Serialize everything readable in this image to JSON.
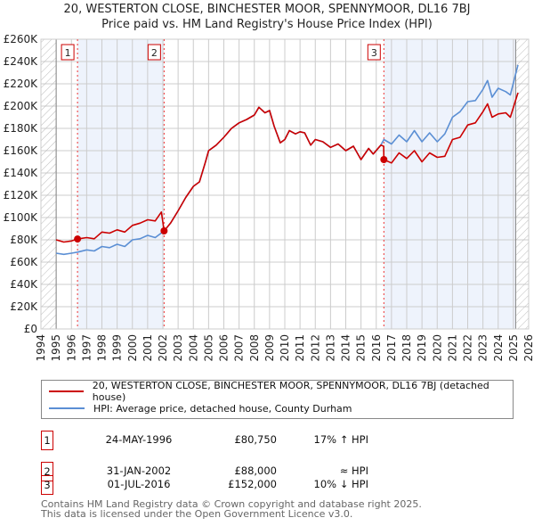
{
  "chart_data": {
    "type": "line",
    "title": "20, WESTERTON CLOSE, BINCHESTER MOOR, SPENNYMOOR, DL16 7BJ",
    "subtitle": "Price paid vs. HM Land Registry's House Price Index (HPI)",
    "xlim": [
      1994,
      2026
    ],
    "ylim": [
      0,
      260000
    ],
    "x_ticks": [
      "1994",
      "1995",
      "1996",
      "1997",
      "1998",
      "1999",
      "2000",
      "2001",
      "2002",
      "2003",
      "2004",
      "2005",
      "2006",
      "2007",
      "2008",
      "2009",
      "2010",
      "2011",
      "2012",
      "2013",
      "2014",
      "2015",
      "2016",
      "2017",
      "2018",
      "2019",
      "2020",
      "2021",
      "2022",
      "2023",
      "2024",
      "2025",
      "2026"
    ],
    "y_ticks": [
      {
        "v": 0,
        "label": "£0"
      },
      {
        "v": 20000,
        "label": "£20K"
      },
      {
        "v": 40000,
        "label": "£40K"
      },
      {
        "v": 60000,
        "label": "£60K"
      },
      {
        "v": 80000,
        "label": "£80K"
      },
      {
        "v": 100000,
        "label": "£100K"
      },
      {
        "v": 120000,
        "label": "£120K"
      },
      {
        "v": 140000,
        "label": "£140K"
      },
      {
        "v": 160000,
        "label": "£160K"
      },
      {
        "v": 180000,
        "label": "£180K"
      },
      {
        "v": 200000,
        "label": "£200K"
      },
      {
        "v": 220000,
        "label": "£220K"
      },
      {
        "v": 240000,
        "label": "£240K"
      },
      {
        "v": 260000,
        "label": "£260K"
      }
    ],
    "grid": true,
    "series": [
      {
        "name": "20, WESTERTON CLOSE, BINCHESTER MOOR, SPENNYMOOR, DL16 7BJ (detached house)",
        "color": "#cc0000",
        "x": [
          1995,
          1995.5,
          1996,
          1996.4,
          1997,
          1997.5,
          1998,
          1998.5,
          1999,
          1999.5,
          2000,
          2000.5,
          2001,
          2001.5,
          2001.9,
          2002.08,
          2002.5,
          2003,
          2003.5,
          2004,
          2004.4,
          2004.8,
          2005,
          2005.5,
          2006,
          2006.5,
          2007,
          2007.5,
          2008,
          2008.3,
          2008.7,
          2009,
          2009.3,
          2009.7,
          2010,
          2010.3,
          2010.7,
          2011,
          2011.3,
          2011.7,
          2012,
          2012.5,
          2013,
          2013.5,
          2014,
          2014.5,
          2015,
          2015.5,
          2015.8,
          2016.3,
          2016.49,
          2016.5,
          2017,
          2017.5,
          2018,
          2018.5,
          2019,
          2019.5,
          2020,
          2020.5,
          2021,
          2021.5,
          2022,
          2022.5,
          2023,
          2023.3,
          2023.6,
          2024,
          2024.5,
          2024.8,
          2025.3
        ],
        "y": [
          80000,
          78000,
          79000,
          80750,
          82000,
          81000,
          87000,
          86000,
          89000,
          87000,
          93000,
          95000,
          98000,
          97000,
          105000,
          88000,
          95000,
          106000,
          118000,
          128000,
          132000,
          150000,
          160000,
          165000,
          172000,
          180000,
          185000,
          188000,
          192000,
          199000,
          194000,
          196000,
          182000,
          167000,
          170000,
          178000,
          175000,
          177000,
          176000,
          165000,
          170000,
          168000,
          163000,
          166000,
          160000,
          164000,
          152000,
          162000,
          157000,
          165000,
          164000,
          152000,
          149000,
          158000,
          153000,
          160000,
          150000,
          158000,
          154000,
          155000,
          170000,
          172000,
          183000,
          185000,
          195000,
          202000,
          190000,
          193000,
          194000,
          190000,
          212000
        ]
      },
      {
        "name": "HPI: Average price, detached house, County Durham",
        "color": "#5b8fd4",
        "x": [
          1995,
          1995.5,
          1996,
          1996.4,
          1997,
          1997.5,
          1998,
          1998.5,
          1999,
          1999.5,
          2000,
          2000.5,
          2001,
          2001.5,
          2002.08,
          2002.5,
          2003,
          2003.5,
          2004,
          2004.4,
          2004.8,
          2005,
          2005.5,
          2006,
          2006.5,
          2007,
          2007.5,
          2008,
          2008.3,
          2008.7,
          2009,
          2009.3,
          2009.7,
          2010,
          2010.3,
          2010.7,
          2011,
          2011.3,
          2011.7,
          2012,
          2012.5,
          2013,
          2013.5,
          2014,
          2014.5,
          2015,
          2015.5,
          2015.8,
          2016.3,
          2016.5,
          2017,
          2017.5,
          2018,
          2018.5,
          2019,
          2019.5,
          2020,
          2020.5,
          2021,
          2021.5,
          2022,
          2022.5,
          2023,
          2023.3,
          2023.6,
          2024,
          2024.5,
          2024.8,
          2025.3
        ],
        "y": [
          68000,
          67000,
          68000,
          69000,
          71000,
          70000,
          74000,
          73000,
          76000,
          74000,
          80000,
          81000,
          84000,
          82000,
          88000,
          95000,
          106000,
          118000,
          128000,
          132000,
          150000,
          160000,
          165000,
          172000,
          180000,
          185000,
          188000,
          192000,
          199000,
          194000,
          196000,
          182000,
          167000,
          170000,
          178000,
          175000,
          177000,
          176000,
          165000,
          170000,
          168000,
          163000,
          166000,
          160000,
          164000,
          152000,
          162000,
          157000,
          165000,
          170000,
          166000,
          174000,
          168000,
          178000,
          168000,
          176000,
          168000,
          175000,
          190000,
          195000,
          204000,
          205000,
          215000,
          223000,
          208000,
          216000,
          213000,
          210000,
          237000
        ]
      }
    ],
    "sales": [
      {
        "id": "1",
        "x": 1996.4,
        "y": 80750,
        "date": "24-MAY-1996",
        "price": "£80,750",
        "hpi": "17% ↑ HPI"
      },
      {
        "id": "2",
        "x": 2002.08,
        "y": 88000,
        "date": "31-JAN-2002",
        "price": "£88,000",
        "hpi": "≈ HPI"
      },
      {
        "id": "3",
        "x": 2016.5,
        "y": 152000,
        "date": "01-JUL-2016",
        "price": "£152,000",
        "hpi": "10% ↓ HPI"
      }
    ],
    "data_end": 2025.15,
    "legend": "bottom"
  },
  "footer": {
    "line1": "Contains HM Land Registry data © Crown copyright and database right 2025.",
    "line2": "This data is licensed under the Open Government Licence v3.0."
  }
}
